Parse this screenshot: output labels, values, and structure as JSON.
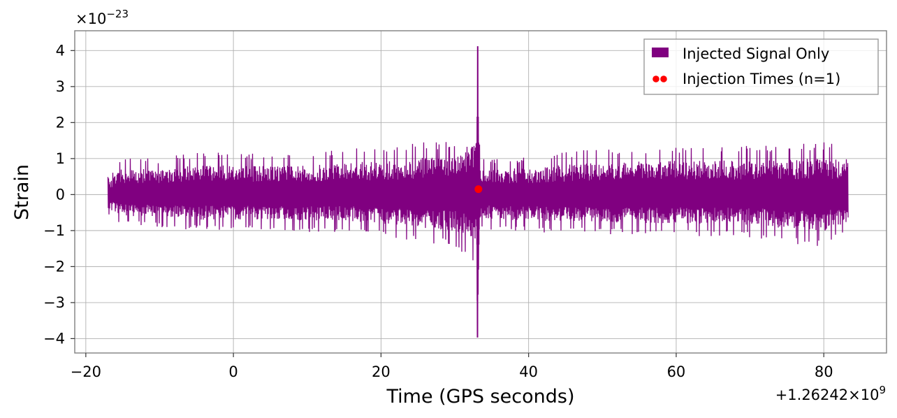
{
  "chart_data": {
    "type": "line",
    "xlabel": "Time (GPS seconds)",
    "ylabel": "Strain",
    "x_offset_text": "+1.26242×10^9",
    "x_offset_base": "+1.26242×10",
    "x_offset_exp": "9",
    "y_multiplier_text": "×10^−23",
    "y_multiplier_base": "×10",
    "y_multiplier_exp": "−23",
    "xlim": [
      -21.5,
      88.5
    ],
    "ylim": [
      -4.4,
      4.55
    ],
    "x_ticks": [
      -20,
      0,
      20,
      40,
      60,
      80
    ],
    "x_tick_labels": [
      "−20",
      "0",
      "20",
      "40",
      "60",
      "80"
    ],
    "y_ticks": [
      -4,
      -3,
      -2,
      -1,
      0,
      1,
      2,
      3,
      4
    ],
    "y_tick_labels": [
      "−4",
      "−3",
      "−2",
      "−1",
      "0",
      "1",
      "2",
      "3",
      "4"
    ],
    "grid": true,
    "legend_position": "top-right",
    "series": [
      {
        "name": "Injected Signal Only",
        "kind": "line",
        "color": "#800080",
        "x_range": [
          -17,
          83.3
        ],
        "envelope": [
          {
            "x": -17,
            "min": -0.55,
            "max": 0.5
          },
          {
            "x": -15,
            "min": -0.85,
            "max": 1.05
          },
          {
            "x": -10,
            "min": -0.9,
            "max": 1.0
          },
          {
            "x": -5,
            "min": -1.0,
            "max": 1.2
          },
          {
            "x": 0,
            "min": -1.0,
            "max": 1.15
          },
          {
            "x": 5,
            "min": -1.0,
            "max": 1.15
          },
          {
            "x": 10,
            "min": -1.05,
            "max": 1.15
          },
          {
            "x": 15,
            "min": -1.05,
            "max": 1.3
          },
          {
            "x": 20,
            "min": -1.15,
            "max": 1.3
          },
          {
            "x": 25,
            "min": -1.3,
            "max": 1.45
          },
          {
            "x": 30,
            "min": -1.45,
            "max": 1.5
          },
          {
            "x": 32.9,
            "min": -1.95,
            "max": 2.2
          },
          {
            "x": 33.1,
            "min": -3.97,
            "max": 4.12
          },
          {
            "x": 33.4,
            "min": -0.95,
            "max": 1.0
          },
          {
            "x": 40,
            "min": -1.05,
            "max": 1.05
          },
          {
            "x": 50,
            "min": -1.1,
            "max": 1.3
          },
          {
            "x": 60,
            "min": -1.15,
            "max": 1.35
          },
          {
            "x": 70,
            "min": -1.2,
            "max": 1.35
          },
          {
            "x": 80,
            "min": -1.5,
            "max": 1.45
          },
          {
            "x": 83.3,
            "min": -1.1,
            "max": 1.4
          }
        ]
      },
      {
        "name": "Injection Times (n=1)",
        "kind": "scatter",
        "color": "#ff0000",
        "x": [
          33.2
        ],
        "y": [
          0.15
        ]
      }
    ]
  }
}
